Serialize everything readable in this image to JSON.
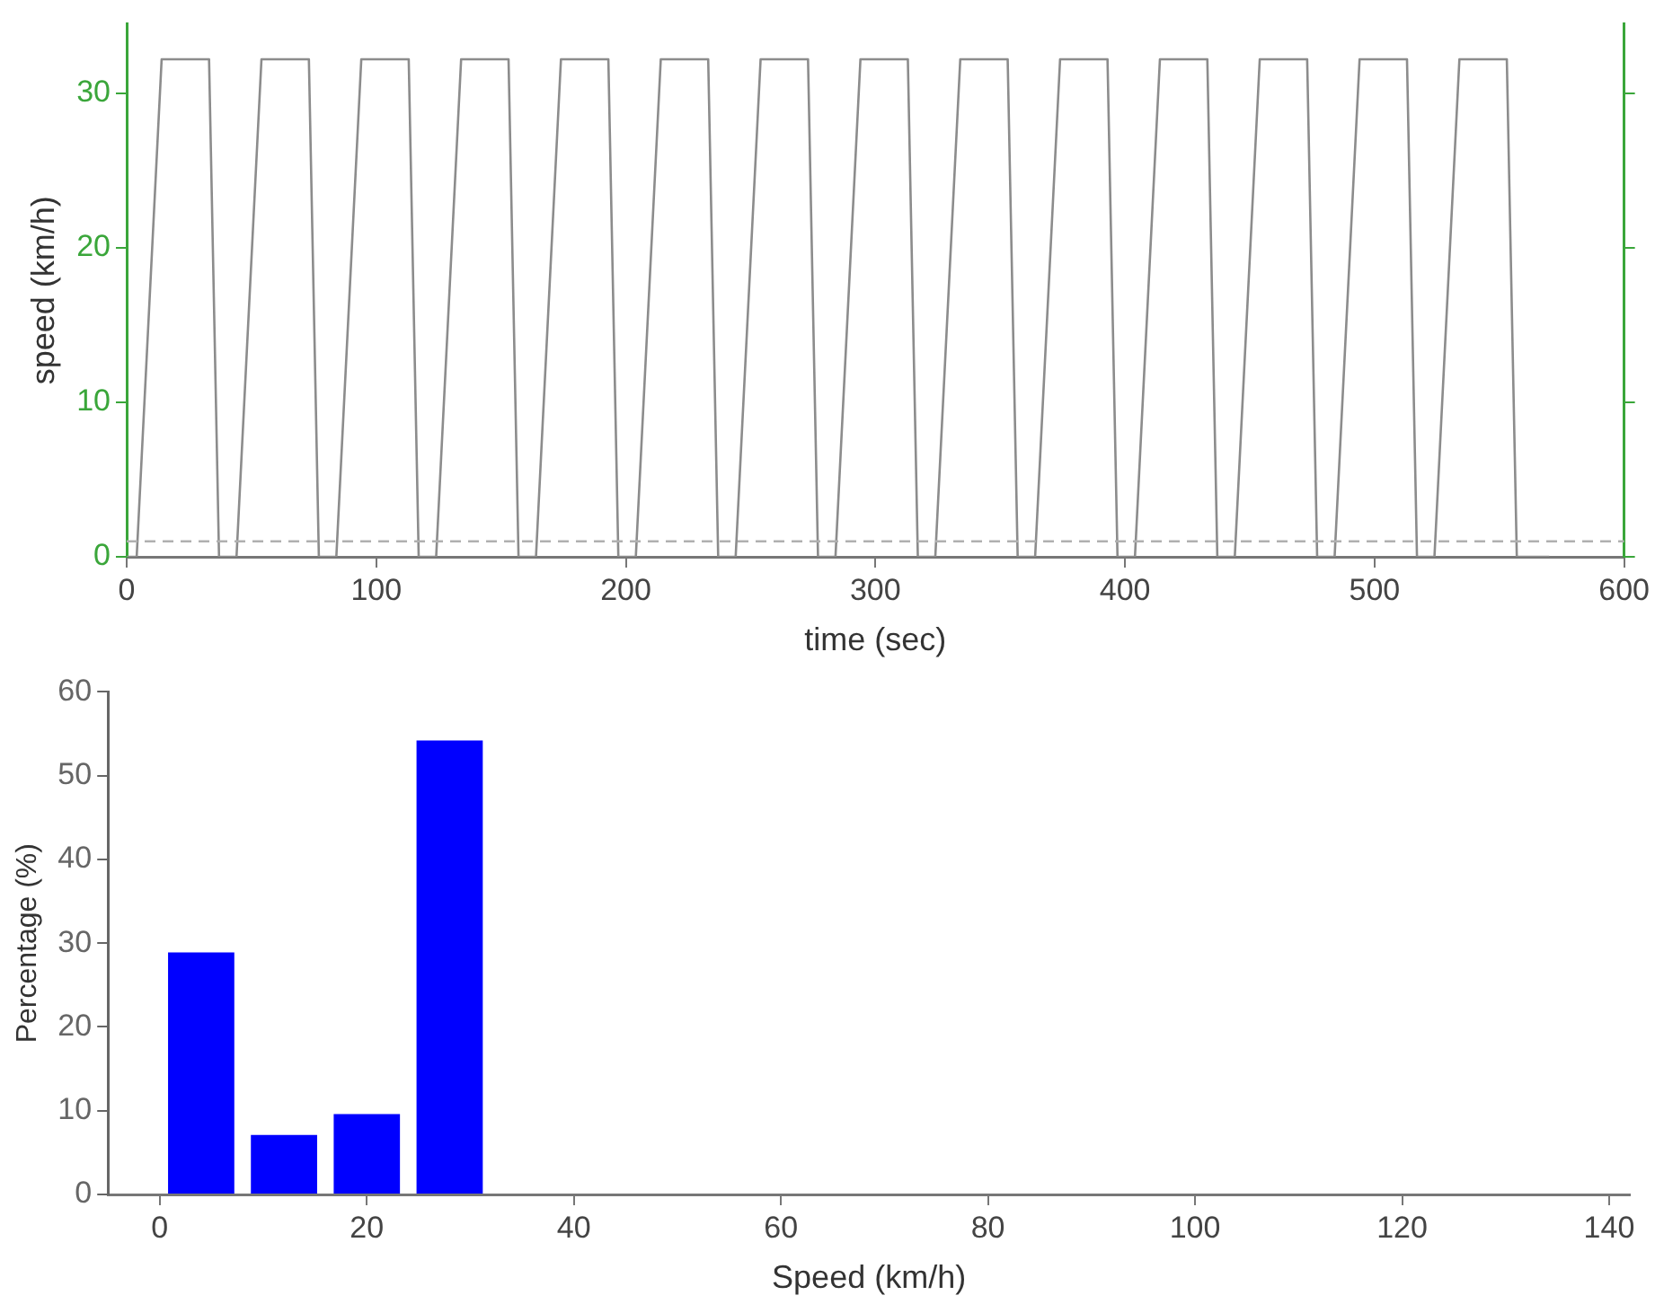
{
  "chart_data": [
    {
      "type": "line",
      "xlabel": "time (sec)",
      "ylabel": "speed (km/h)",
      "x": [
        0,
        4,
        14,
        33,
        37,
        44,
        54,
        73,
        77,
        84,
        94,
        113,
        117,
        124,
        134,
        153,
        157,
        164,
        174,
        193,
        197,
        204,
        214,
        233,
        237,
        244,
        254,
        273,
        277,
        284,
        294,
        313,
        317,
        324,
        334,
        353,
        357,
        364,
        374,
        393,
        397,
        404,
        414,
        433,
        437,
        444,
        454,
        473,
        477,
        484,
        494,
        513,
        517,
        524,
        534,
        553,
        557,
        570
      ],
      "values": [
        0,
        0,
        32.2,
        32.2,
        0,
        0,
        32.2,
        32.2,
        0,
        0,
        32.2,
        32.2,
        0,
        0,
        32.2,
        32.2,
        0,
        0,
        32.2,
        32.2,
        0,
        0,
        32.2,
        32.2,
        0,
        0,
        32.2,
        32.2,
        0,
        0,
        32.2,
        32.2,
        0,
        0,
        32.2,
        32.2,
        0,
        0,
        32.2,
        32.2,
        0,
        0,
        32.2,
        32.2,
        0,
        0,
        32.2,
        32.2,
        0,
        0,
        32.2,
        32.2,
        0,
        0,
        32.2,
        32.2,
        0,
        0
      ],
      "color": "#8c8c8c",
      "marker": "none",
      "line_style": "solid",
      "xlim": [
        0,
        600
      ],
      "xticks": [
        0,
        100,
        200,
        300,
        400,
        500,
        600
      ],
      "ylim": [
        0,
        34.5
      ],
      "yticks": [
        0,
        10,
        20,
        30
      ],
      "ref_lines": [
        {
          "axis": "y",
          "value": 1,
          "color": "#b0b0b0",
          "line_style": "dashed"
        }
      ],
      "grid": false,
      "legend": false
    },
    {
      "type": "histogram",
      "xlabel": "Speed (km/h)",
      "ylabel": "Percentage (%)",
      "bins": [
        0,
        8,
        16,
        24,
        32
      ],
      "values": [
        28.9,
        7.1,
        9.6,
        54.2
      ],
      "color": "#0000ff",
      "xlim": [
        -5,
        142
      ],
      "xticks": [
        0,
        20,
        40,
        60,
        80,
        100,
        120,
        140
      ],
      "ylim": [
        0,
        60
      ],
      "yticks": [
        0,
        10,
        20,
        30,
        40,
        50,
        60
      ],
      "grid": false,
      "legend": false
    }
  ]
}
